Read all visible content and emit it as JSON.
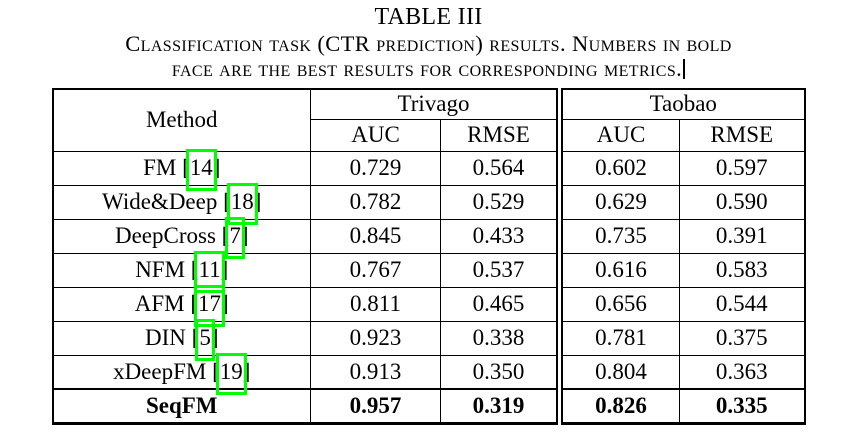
{
  "title": "TABLE III",
  "caption": {
    "line1": "Classification task (CTR prediction) results. Numbers in bold",
    "line2": "face are the best results for corresponding metrics."
  },
  "annotation": {
    "citation_box_color": "#00ff00",
    "citation_box_meaning": "citation-link-bounding-box"
  },
  "chart_data": {
    "type": "table",
    "title": "TABLE III",
    "caption": "Classification task (CTR prediction) results. Numbers in bold face are the best results for corresponding metrics.",
    "column_groups": [
      "Trivago",
      "Taobao"
    ],
    "columns": [
      "Method",
      "Trivago AUC",
      "Trivago RMSE",
      "Taobao AUC",
      "Taobao RMSE"
    ],
    "rows": [
      [
        "FM [14]",
        0.729,
        0.564,
        0.602,
        0.597
      ],
      [
        "Wide&Deep [18]",
        0.782,
        0.529,
        0.629,
        0.59
      ],
      [
        "DeepCross [7]",
        0.845,
        0.433,
        0.735,
        0.391
      ],
      [
        "NFM [11]",
        0.767,
        0.537,
        0.616,
        0.583
      ],
      [
        "AFM [17]",
        0.811,
        0.465,
        0.656,
        0.544
      ],
      [
        "DIN [5]",
        0.923,
        0.338,
        0.781,
        0.375
      ],
      [
        "xDeepFM [19]",
        0.913,
        0.35,
        0.804,
        0.363
      ],
      [
        "SeqFM",
        0.957,
        0.319,
        0.826,
        0.335
      ]
    ],
    "best_row": "SeqFM"
  },
  "table": {
    "method_header": "Method",
    "groups": [
      {
        "label": "Trivago"
      },
      {
        "label": "Taobao"
      }
    ],
    "metric_headers": [
      "AUC",
      "RMSE",
      "AUC",
      "RMSE"
    ],
    "cite_open_bracket": "[",
    "cite_close_bracket": "]",
    "rows": [
      {
        "method": "FM",
        "cite": "14",
        "values": [
          "0.729",
          "0.564",
          "0.602",
          "0.597"
        ],
        "bold": false
      },
      {
        "method": "Wide&Deep",
        "cite": "18",
        "values": [
          "0.782",
          "0.529",
          "0.629",
          "0.590"
        ],
        "bold": false
      },
      {
        "method": "DeepCross",
        "cite": "7",
        "values": [
          "0.845",
          "0.433",
          "0.735",
          "0.391"
        ],
        "bold": false
      },
      {
        "method": "NFM",
        "cite": "11",
        "values": [
          "0.767",
          "0.537",
          "0.616",
          "0.583"
        ],
        "bold": false
      },
      {
        "method": "AFM",
        "cite": "17",
        "values": [
          "0.811",
          "0.465",
          "0.656",
          "0.544"
        ],
        "bold": false
      },
      {
        "method": "DIN",
        "cite": "5",
        "values": [
          "0.923",
          "0.338",
          "0.781",
          "0.375"
        ],
        "bold": false
      },
      {
        "method": "xDeepFM",
        "cite": "19",
        "values": [
          "0.913",
          "0.350",
          "0.804",
          "0.363"
        ],
        "bold": false
      },
      {
        "method": "SeqFM",
        "cite": "",
        "values": [
          "0.957",
          "0.319",
          "0.826",
          "0.335"
        ],
        "bold": true
      }
    ]
  }
}
